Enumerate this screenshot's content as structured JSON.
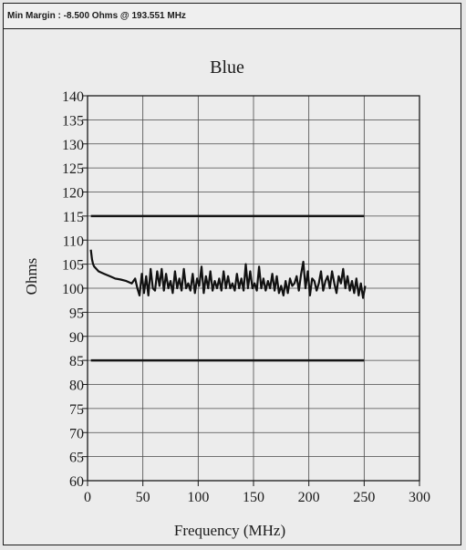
{
  "header": {
    "min_margin_text": "Min Margin : -8.500 Ohms @ 193.551 MHz"
  },
  "chart_data": {
    "type": "line",
    "title": "Blue",
    "xlabel": "Frequency (MHz)",
    "ylabel": "Ohms",
    "xlim": [
      0,
      300
    ],
    "ylim": [
      60,
      140
    ],
    "xticks": [
      "0",
      "50",
      "100",
      "150",
      "200",
      "250",
      "300"
    ],
    "yticks": [
      "60",
      "65",
      "70",
      "75",
      "80",
      "85",
      "90",
      "95",
      "100",
      "105",
      "110",
      "115",
      "120",
      "125",
      "130",
      "135",
      "140"
    ],
    "grid": true,
    "limit_lines": [
      {
        "y": 115,
        "x": [
          3,
          250
        ]
      },
      {
        "y": 85,
        "x": [
          3,
          250
        ]
      }
    ],
    "series": [
      {
        "x": [
          3,
          4,
          5,
          6,
          8,
          10,
          15,
          20,
          25,
          30,
          35,
          40,
          43,
          45,
          47,
          49,
          51,
          53,
          55,
          57,
          59,
          61,
          63,
          65,
          67,
          69,
          71,
          73,
          75,
          77,
          79,
          81,
          83,
          85,
          87,
          89,
          91,
          93,
          95,
          97,
          99,
          101,
          103,
          105,
          107,
          109,
          111,
          113,
          115,
          117,
          119,
          121,
          123,
          125,
          127,
          129,
          131,
          133,
          135,
          137,
          139,
          141,
          143,
          145,
          147,
          149,
          151,
          153,
          155,
          157,
          159,
          161,
          163,
          165,
          167,
          169,
          171,
          173,
          175,
          177,
          179,
          181,
          183,
          185,
          187,
          189,
          191,
          193,
          195,
          197,
          199,
          201,
          203,
          205,
          207,
          209,
          211,
          213,
          215,
          217,
          219,
          221,
          223,
          225,
          227,
          229,
          231,
          233,
          235,
          237,
          239,
          241,
          243,
          245,
          247,
          249,
          251
        ],
        "y": [
          108,
          106,
          105,
          104.5,
          104,
          103.5,
          103,
          102.5,
          102,
          101.8,
          101.5,
          101,
          102,
          100,
          98.5,
          103,
          99,
          102.5,
          98.5,
          104,
          100,
          99.5,
          103.5,
          100.5,
          104,
          99.5,
          103,
          100,
          101.5,
          99,
          103.5,
          100,
          102,
          99.5,
          104,
          100,
          101,
          99.5,
          103,
          99,
          102,
          100.5,
          104.5,
          99,
          102.5,
          100,
          103.5,
          99.5,
          101.5,
          100,
          102,
          99.5,
          103.5,
          100,
          102.5,
          100,
          101,
          99.5,
          103,
          100,
          102,
          99.5,
          105,
          100,
          103.5,
          100,
          101,
          99.5,
          104.5,
          100,
          102,
          99.5,
          101.5,
          100,
          103,
          99.5,
          102.5,
          99,
          100.5,
          98.5,
          101.5,
          99,
          102,
          100.5,
          101,
          102.5,
          99.5,
          103,
          105.5,
          100,
          103.5,
          98.5,
          102,
          101.5,
          99.5,
          101,
          103.5,
          99.5,
          101.5,
          102.5,
          100,
          103.5,
          101,
          99,
          102.5,
          101,
          104,
          100,
          102.5,
          99.5,
          101.5,
          99,
          102,
          98.5,
          101,
          98,
          100.5
        ]
      }
    ]
  }
}
